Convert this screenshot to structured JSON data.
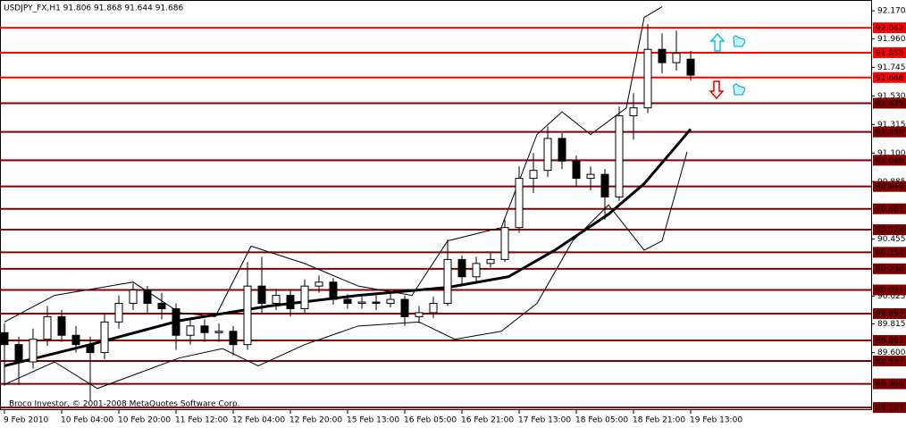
{
  "chart_data": {
    "type": "candlestick",
    "title": "USDJPY_FX,H1  91.806 91.868 91.644 91.686",
    "copyright": "Broco Investor, © 2001-2008 MetaQuotes Software Corp.",
    "x": [
      0,
      4,
      8,
      12,
      16,
      20,
      24,
      28,
      32,
      36,
      40,
      44,
      48,
      52,
      56,
      60,
      64,
      68,
      72,
      76,
      80,
      84,
      88,
      92,
      96,
      100,
      104,
      108,
      112,
      116,
      120,
      124,
      128,
      132,
      136,
      140,
      144,
      148,
      152,
      156,
      160,
      164,
      168,
      172,
      176,
      180,
      184,
      188,
      192
    ],
    "open": [
      89.75,
      89.66,
      89.53,
      89.7,
      89.87,
      89.73,
      89.66,
      89.6,
      89.83,
      89.97,
      90.07,
      89.97,
      89.93,
      89.73,
      89.8,
      89.75,
      89.76,
      89.66,
      90.1,
      89.97,
      90.03,
      89.93,
      90.1,
      90.13,
      90.0,
      89.97,
      89.98,
      89.97,
      90.0,
      89.87,
      89.9,
      89.97,
      90.3,
      90.17,
      90.27,
      90.3,
      90.54,
      90.91,
      90.97,
      91.21,
      91.04,
      90.91,
      90.94,
      90.77,
      91.38,
      91.44,
      91.88,
      91.78,
      91.806
    ],
    "high": [
      89.82,
      89.72,
      89.78,
      89.95,
      89.92,
      89.8,
      89.72,
      89.9,
      90.03,
      90.12,
      90.1,
      90.05,
      89.97,
      89.86,
      89.85,
      89.82,
      89.8,
      90.28,
      90.32,
      90.08,
      90.07,
      90.15,
      90.18,
      90.16,
      90.04,
      90.02,
      90.03,
      90.06,
      90.03,
      89.95,
      90.02,
      90.45,
      90.33,
      90.32,
      90.35,
      90.6,
      91.0,
      91.1,
      91.3,
      91.25,
      91.08,
      91.0,
      90.98,
      91.45,
      91.55,
      92.07,
      92.0,
      92.02,
      91.868
    ],
    "low": [
      89.35,
      89.36,
      89.48,
      89.65,
      89.68,
      89.6,
      89.24,
      89.55,
      89.78,
      89.92,
      89.9,
      89.85,
      89.62,
      89.66,
      89.68,
      89.68,
      89.58,
      89.62,
      89.9,
      89.92,
      89.87,
      89.9,
      90.05,
      89.96,
      89.93,
      89.93,
      89.92,
      89.94,
      89.8,
      89.82,
      89.86,
      89.95,
      90.1,
      90.12,
      90.24,
      90.28,
      90.5,
      90.8,
      90.92,
      90.98,
      90.85,
      90.82,
      90.6,
      90.74,
      91.2,
      91.4,
      91.7,
      91.72,
      91.644
    ],
    "close": [
      89.66,
      89.53,
      89.7,
      89.87,
      89.73,
      89.66,
      89.6,
      89.83,
      89.97,
      90.07,
      89.97,
      89.93,
      89.73,
      89.8,
      89.75,
      89.76,
      89.66,
      90.1,
      89.97,
      90.03,
      89.93,
      90.1,
      90.13,
      90.0,
      89.97,
      89.98,
      89.97,
      90.0,
      89.87,
      89.9,
      89.97,
      90.3,
      90.17,
      90.27,
      90.3,
      90.54,
      90.91,
      90.97,
      91.21,
      91.04,
      90.91,
      90.94,
      90.77,
      91.38,
      91.44,
      91.88,
      91.78,
      91.85,
      91.686
    ],
    "moving_average": {
      "x": [
        0,
        24,
        49,
        74,
        99,
        124,
        141,
        154,
        169,
        179,
        192
      ],
      "values": [
        89.5,
        89.66,
        89.84,
        89.95,
        90.03,
        90.09,
        90.17,
        90.37,
        90.64,
        90.87,
        91.28
      ]
    },
    "bollinger_upper": {
      "x": [
        0,
        14,
        36,
        49,
        59,
        69,
        84,
        99,
        114,
        124,
        139,
        149,
        156,
        164,
        174,
        179,
        184
      ],
      "values": [
        89.83,
        90.03,
        90.13,
        89.9,
        89.87,
        90.4,
        90.27,
        90.1,
        90.03,
        90.44,
        90.54,
        91.24,
        91.41,
        91.24,
        91.44,
        92.12,
        92.2
      ]
    },
    "bollinger_lower": {
      "x": [
        0,
        14,
        26,
        36,
        49,
        61,
        71,
        84,
        99,
        116,
        126,
        139,
        149,
        159,
        169,
        179,
        184,
        191
      ],
      "values": [
        89.36,
        89.53,
        89.33,
        89.43,
        89.56,
        89.63,
        89.5,
        89.66,
        89.8,
        89.83,
        89.7,
        89.76,
        89.97,
        90.44,
        90.71,
        90.37,
        90.44,
        91.11
      ]
    },
    "levels_red": [
      92.042,
      91.855,
      91.668
    ],
    "levels_dark": [
      91.475,
      91.259,
      91.046,
      90.849,
      90.681,
      90.524,
      90.354,
      {
        "value": 90.23,
        "label": "90.230"
      },
      90.071,
      89.893,
      89.691,
      89.537,
      89.365,
      89.187
    ],
    "red_color": "#ff0000",
    "dark_color": "#800000",
    "xlim": [
      -1.25,
      242.5
    ],
    "ylim": [
      89.174,
      92.251
    ],
    "xticks": [
      {
        "value": 0,
        "label": "9 Feb 2010"
      },
      {
        "value": 16,
        "label": "10 Feb 04:00"
      },
      {
        "value": 32,
        "label": "10 Feb 20:00"
      },
      {
        "value": 48,
        "label": "11 Feb 12:00"
      },
      {
        "value": 64,
        "label": "12 Feb 04:00"
      },
      {
        "value": 80,
        "label": "12 Feb 20:00"
      },
      {
        "value": 96,
        "label": "15 Feb 13:00"
      },
      {
        "value": 112,
        "label": "16 Feb 05:00"
      },
      {
        "value": 128,
        "label": "16 Feb 21:00"
      },
      {
        "value": 144,
        "label": "17 Feb 13:00"
      },
      {
        "value": 160,
        "label": "18 Feb 05:00"
      },
      {
        "value": 176,
        "label": "18 Feb 21:00"
      },
      {
        "value": 192,
        "label": "19 Feb 13:00"
      }
    ],
    "yticks": [
      {
        "value": 92.17,
        "label": "92.170"
      },
      {
        "value": 91.96,
        "label": "91.960"
      },
      91.745,
      {
        "value": 91.53,
        "label": "91.530"
      },
      91.315,
      {
        "value": 91.1,
        "label": "91.100"
      },
      90.885,
      90.455,
      90.025,
      89.815,
      {
        "value": 89.6,
        "label": "89.600"
      }
    ]
  }
}
